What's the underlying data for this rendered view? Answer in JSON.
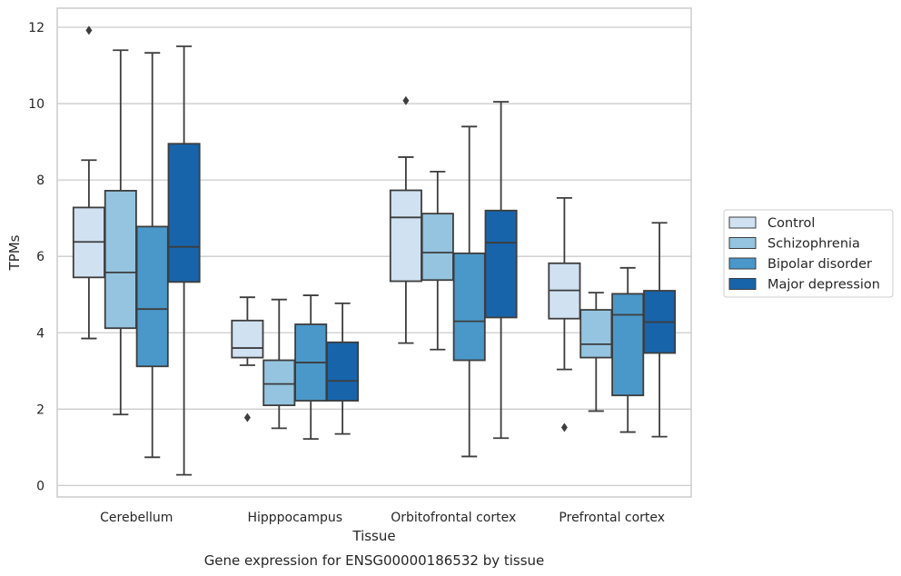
{
  "chart_data": {
    "type": "boxplot",
    "title": "",
    "caption": "Gene expression for ENSG00000186532 by tissue",
    "xlabel": "Tissue",
    "ylabel": "TPMs",
    "ylim": [
      -0.3,
      12.5
    ],
    "yticks": [
      0,
      2,
      4,
      6,
      8,
      10,
      12
    ],
    "grid": "horizontal",
    "legend_position": "right",
    "categories": [
      "Cerebellum",
      "Hipppocampus",
      "Orbitofrontal cortex",
      "Prefrontal cortex"
    ],
    "series": [
      {
        "name": "Control",
        "color": "#d0e1f2",
        "boxes": [
          {
            "whisker_low": 3.85,
            "q1": 5.45,
            "median": 6.38,
            "q3": 7.28,
            "whisker_high": 8.52,
            "outliers": [
              11.92
            ]
          },
          {
            "whisker_low": 3.15,
            "q1": 3.35,
            "median": 3.6,
            "q3": 4.32,
            "whisker_high": 4.93,
            "outliers": [
              1.78
            ]
          },
          {
            "whisker_low": 3.73,
            "q1": 5.35,
            "median": 7.02,
            "q3": 7.73,
            "whisker_high": 8.6,
            "outliers": [
              10.08
            ]
          },
          {
            "whisker_low": 3.04,
            "q1": 4.37,
            "median": 5.11,
            "q3": 5.82,
            "whisker_high": 7.53,
            "outliers": [
              1.52
            ]
          }
        ]
      },
      {
        "name": "Schizophrenia",
        "color": "#94c4df",
        "boxes": [
          {
            "whisker_low": 1.86,
            "q1": 4.12,
            "median": 5.58,
            "q3": 7.72,
            "whisker_high": 11.4,
            "outliers": []
          },
          {
            "whisker_low": 1.5,
            "q1": 2.1,
            "median": 2.66,
            "q3": 3.28,
            "whisker_high": 4.87,
            "outliers": []
          },
          {
            "whisker_low": 3.56,
            "q1": 5.38,
            "median": 6.1,
            "q3": 7.12,
            "whisker_high": 8.22,
            "outliers": []
          },
          {
            "whisker_low": 1.95,
            "q1": 3.35,
            "median": 3.7,
            "q3": 4.6,
            "whisker_high": 5.05,
            "outliers": []
          }
        ]
      },
      {
        "name": "Bipolar disorder",
        "color": "#4a98c9",
        "boxes": [
          {
            "whisker_low": 0.74,
            "q1": 3.12,
            "median": 4.62,
            "q3": 6.78,
            "whisker_high": 11.33,
            "outliers": []
          },
          {
            "whisker_low": 1.22,
            "q1": 2.22,
            "median": 3.22,
            "q3": 4.22,
            "whisker_high": 4.98,
            "outliers": []
          },
          {
            "whisker_low": 0.76,
            "q1": 3.28,
            "median": 4.3,
            "q3": 6.08,
            "whisker_high": 9.4,
            "outliers": []
          },
          {
            "whisker_low": 1.4,
            "q1": 2.36,
            "median": 4.47,
            "q3": 5.02,
            "whisker_high": 5.7,
            "outliers": []
          }
        ]
      },
      {
        "name": "Major depression",
        "color": "#1764ab",
        "boxes": [
          {
            "whisker_low": 0.28,
            "q1": 5.33,
            "median": 6.25,
            "q3": 8.95,
            "whisker_high": 11.5,
            "outliers": []
          },
          {
            "whisker_low": 1.35,
            "q1": 2.22,
            "median": 2.74,
            "q3": 3.75,
            "whisker_high": 4.77,
            "outliers": []
          },
          {
            "whisker_low": 1.24,
            "q1": 4.4,
            "median": 6.36,
            "q3": 7.2,
            "whisker_high": 10.05,
            "outliers": []
          },
          {
            "whisker_low": 1.28,
            "q1": 3.47,
            "median": 4.28,
            "q3": 5.1,
            "whisker_high": 6.88,
            "outliers": []
          }
        ]
      }
    ]
  }
}
